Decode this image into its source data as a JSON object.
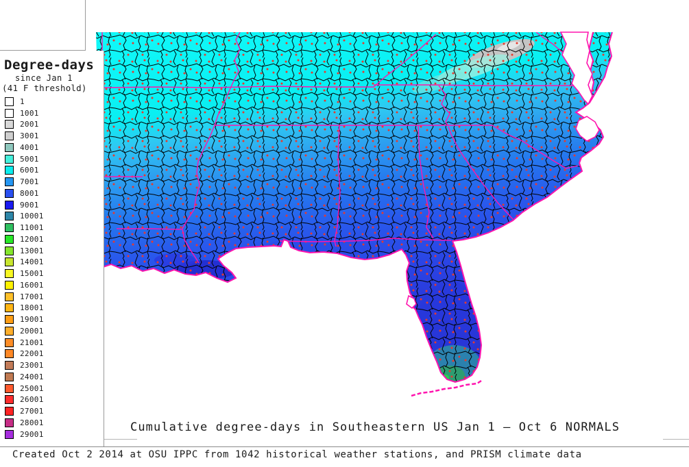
{
  "legend": {
    "title": "Degree-days",
    "subtitle1": "since Jan 1",
    "subtitle2": "(41 F threshold)",
    "items": [
      {
        "label": "1",
        "color": "#FFFFFF"
      },
      {
        "label": "1001",
        "color": "#FFFFFF"
      },
      {
        "label": "2001",
        "color": "#D8D8D8"
      },
      {
        "label": "3001",
        "color": "#CFCFCF"
      },
      {
        "label": "4001",
        "color": "#8FC8BE"
      },
      {
        "label": "5001",
        "color": "#45F0DC"
      },
      {
        "label": "6001",
        "color": "#0CEDED"
      },
      {
        "label": "7001",
        "color": "#2596F2"
      },
      {
        "label": "8001",
        "color": "#2A50F0"
      },
      {
        "label": "9001",
        "color": "#1A1AF0"
      },
      {
        "label": "10001",
        "color": "#2E86A8"
      },
      {
        "label": "11001",
        "color": "#30C060"
      },
      {
        "label": "12001",
        "color": "#28E828"
      },
      {
        "label": "13001",
        "color": "#85E62E"
      },
      {
        "label": "14001",
        "color": "#C8E62E"
      },
      {
        "label": "15001",
        "color": "#F8F822"
      },
      {
        "label": "16001",
        "color": "#FFF200"
      },
      {
        "label": "17001",
        "color": "#FFC02A"
      },
      {
        "label": "18001",
        "color": "#FFB514"
      },
      {
        "label": "19001",
        "color": "#FF9D14"
      },
      {
        "label": "20001",
        "color": "#FFAE2B"
      },
      {
        "label": "21001",
        "color": "#FF8D26"
      },
      {
        "label": "22001",
        "color": "#FF8826"
      },
      {
        "label": "23001",
        "color": "#C27B58"
      },
      {
        "label": "24001",
        "color": "#C07A52"
      },
      {
        "label": "25001",
        "color": "#FF5A2E"
      },
      {
        "label": "26001",
        "color": "#FF2D2D"
      },
      {
        "label": "27001",
        "color": "#FF2424"
      },
      {
        "label": "28001",
        "color": "#C62D85"
      },
      {
        "label": "29001",
        "color": "#A62DDE"
      }
    ]
  },
  "map": {
    "title": "Cumulative degree-days in Southeastern US Jan 1 — Oct 6 NORMALS",
    "colors": {
      "ocean": "#FFFFFF",
      "county_border": "#000000",
      "state_border": "#FF14AE",
      "coastline": "#FF14AE",
      "station_dot": "#E8392C",
      "north_fill": "#12FAFA",
      "mid_fill": "#2577EE",
      "south_fill": "#2A33D0",
      "mountain_patch": "#C4C4C4",
      "south_florida_patch": "#2FA06A"
    }
  },
  "footer": {
    "text": "Created Oct 2 2014 at OSU IPPC from 1042 historical weather stations, and PRISM climate data"
  }
}
